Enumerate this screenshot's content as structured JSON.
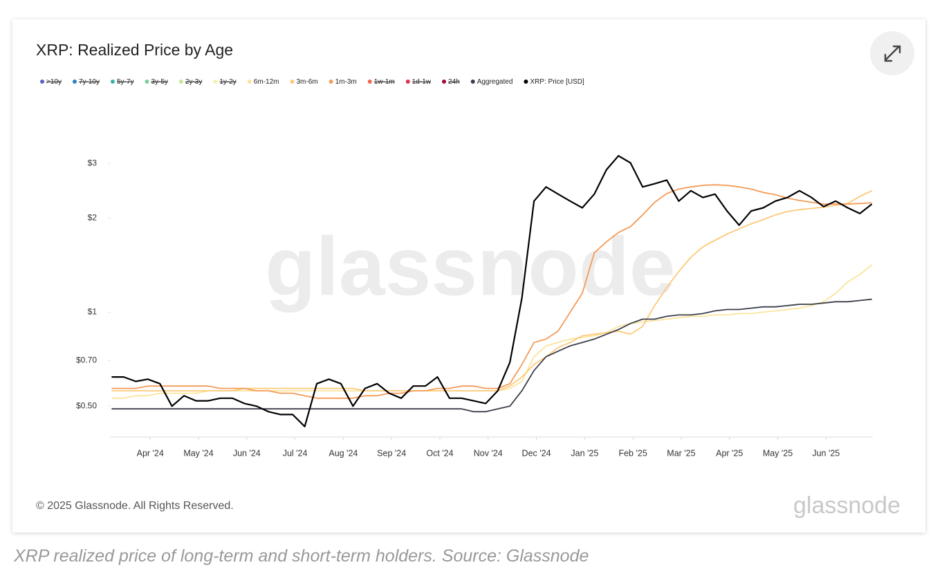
{
  "chart_data": {
    "type": "line",
    "title": "XRP: Realized Price by Age",
    "yscale": "log",
    "ylim": [
      0.4,
      5
    ],
    "yticks": [
      {
        "value": 0.5,
        "label": "$0.50"
      },
      {
        "value": 0.7,
        "label": "$0.70"
      },
      {
        "value": 1,
        "label": "$1"
      },
      {
        "value": 2,
        "label": "$2"
      },
      {
        "value": 3,
        "label": "$3"
      }
    ],
    "xlim": [
      -0.82,
      14.97
    ],
    "xticks": [
      {
        "value": 0,
        "label": "Apr '24"
      },
      {
        "value": 1,
        "label": "May '24"
      },
      {
        "value": 2,
        "label": "Jun '24"
      },
      {
        "value": 3,
        "label": "Jul '24"
      },
      {
        "value": 4,
        "label": "Aug '24"
      },
      {
        "value": 5,
        "label": "Sep '24"
      },
      {
        "value": 6,
        "label": "Oct '24"
      },
      {
        "value": 7,
        "label": "Nov '24"
      },
      {
        "value": 8,
        "label": "Dec '24"
      },
      {
        "value": 9,
        "label": "Jan '25"
      },
      {
        "value": 10,
        "label": "Feb '25"
      },
      {
        "value": 11,
        "label": "Mar '25"
      },
      {
        "value": 12,
        "label": "Apr '25"
      },
      {
        "value": 13,
        "label": "May '25"
      },
      {
        "value": 14,
        "label": "Jun '25"
      }
    ],
    "x": [
      -0.8,
      -0.55,
      -0.3,
      -0.05,
      0.2,
      0.45,
      0.7,
      0.95,
      1.2,
      1.45,
      1.7,
      1.95,
      2.2,
      2.45,
      2.7,
      2.95,
      3.2,
      3.45,
      3.7,
      3.95,
      4.2,
      4.45,
      4.7,
      4.95,
      5.2,
      5.45,
      5.7,
      5.95,
      6.2,
      6.45,
      6.7,
      6.95,
      7.2,
      7.45,
      7.7,
      7.95,
      8.2,
      8.45,
      8.7,
      8.95,
      9.2,
      9.45,
      9.7,
      9.95,
      10.2,
      10.45,
      10.7,
      10.95,
      11.2,
      11.45,
      11.7,
      11.95,
      12.2,
      12.45,
      12.7,
      12.95,
      13.2,
      13.45,
      13.7,
      13.95,
      14.2,
      14.45,
      14.7,
      14.95
    ],
    "series": [
      {
        "name": ">10y",
        "color": "#5b5fc7",
        "hidden": true
      },
      {
        "name": "7y-10y",
        "color": "#2f7fc1",
        "hidden": true
      },
      {
        "name": "5y-7y",
        "color": "#3bb3a8",
        "hidden": true
      },
      {
        "name": "3y-5y",
        "color": "#7ccf9a",
        "hidden": true
      },
      {
        "name": "2y-3y",
        "color": "#c5e59a",
        "hidden": true
      },
      {
        "name": "1y-2y",
        "color": "#f3f3a6",
        "hidden": true
      },
      {
        "name": "6m-12m",
        "color": "#fbe49a",
        "values": [
          0.53,
          0.53,
          0.54,
          0.54,
          0.55,
          0.55,
          0.55,
          0.55,
          0.56,
          0.56,
          0.56,
          0.56,
          0.56,
          0.56,
          0.56,
          0.56,
          0.56,
          0.56,
          0.56,
          0.56,
          0.56,
          0.56,
          0.56,
          0.56,
          0.56,
          0.56,
          0.56,
          0.56,
          0.56,
          0.56,
          0.56,
          0.56,
          0.56,
          0.57,
          0.6,
          0.72,
          0.78,
          0.8,
          0.82,
          0.83,
          0.84,
          0.86,
          0.9,
          0.92,
          0.93,
          0.94,
          0.95,
          0.96,
          0.97,
          0.97,
          0.98,
          0.98,
          0.99,
          0.99,
          1.0,
          1.01,
          1.02,
          1.03,
          1.05,
          1.08,
          1.15,
          1.25,
          1.32,
          1.42
        ]
      },
      {
        "name": "3m-6m",
        "color": "#fcc978",
        "values": [
          0.56,
          0.56,
          0.56,
          0.56,
          0.56,
          0.56,
          0.56,
          0.56,
          0.56,
          0.56,
          0.56,
          0.57,
          0.57,
          0.57,
          0.57,
          0.57,
          0.57,
          0.57,
          0.57,
          0.57,
          0.57,
          0.56,
          0.56,
          0.56,
          0.56,
          0.56,
          0.56,
          0.56,
          0.56,
          0.56,
          0.56,
          0.56,
          0.56,
          0.58,
          0.62,
          0.68,
          0.72,
          0.77,
          0.8,
          0.84,
          0.85,
          0.86,
          0.87,
          0.85,
          0.9,
          1.05,
          1.2,
          1.35,
          1.5,
          1.62,
          1.7,
          1.78,
          1.85,
          1.92,
          1.98,
          2.05,
          2.1,
          2.13,
          2.15,
          2.17,
          2.2,
          2.23,
          2.35,
          2.45
        ]
      },
      {
        "name": "1m-3m",
        "color": "#f59a55",
        "values": [
          0.57,
          0.57,
          0.57,
          0.58,
          0.58,
          0.58,
          0.58,
          0.58,
          0.58,
          0.57,
          0.57,
          0.57,
          0.56,
          0.56,
          0.55,
          0.55,
          0.54,
          0.53,
          0.53,
          0.53,
          0.53,
          0.54,
          0.54,
          0.55,
          0.55,
          0.56,
          0.56,
          0.57,
          0.57,
          0.58,
          0.58,
          0.57,
          0.57,
          0.59,
          0.68,
          0.8,
          0.82,
          0.87,
          1.0,
          1.15,
          1.55,
          1.68,
          1.8,
          1.88,
          2.05,
          2.25,
          2.4,
          2.48,
          2.52,
          2.55,
          2.56,
          2.55,
          2.52,
          2.48,
          2.42,
          2.38,
          2.32,
          2.28,
          2.25,
          2.22,
          2.22,
          2.22,
          2.23,
          2.24
        ]
      },
      {
        "name": "1w-1m",
        "color": "#f0694a",
        "hidden": true
      },
      {
        "name": "1d-1w",
        "color": "#d8344a",
        "hidden": true
      },
      {
        "name": "24h",
        "color": "#9b0d3c",
        "hidden": true
      },
      {
        "name": "Aggregated",
        "color": "#3b3d4a",
        "values": [
          0.49,
          0.49,
          0.49,
          0.49,
          0.49,
          0.49,
          0.49,
          0.49,
          0.49,
          0.49,
          0.49,
          0.49,
          0.49,
          0.49,
          0.49,
          0.49,
          0.49,
          0.49,
          0.49,
          0.49,
          0.49,
          0.49,
          0.49,
          0.49,
          0.49,
          0.49,
          0.49,
          0.49,
          0.49,
          0.49,
          0.48,
          0.48,
          0.49,
          0.5,
          0.56,
          0.65,
          0.72,
          0.75,
          0.78,
          0.8,
          0.82,
          0.85,
          0.88,
          0.92,
          0.95,
          0.95,
          0.97,
          0.98,
          0.98,
          0.99,
          1.01,
          1.02,
          1.02,
          1.03,
          1.04,
          1.04,
          1.05,
          1.06,
          1.06,
          1.07,
          1.08,
          1.08,
          1.09,
          1.1
        ]
      },
      {
        "name": "XRP: Price [USD]",
        "color": "#000000",
        "values": [
          0.62,
          0.62,
          0.6,
          0.61,
          0.59,
          0.5,
          0.54,
          0.52,
          0.52,
          0.53,
          0.53,
          0.51,
          0.5,
          0.48,
          0.47,
          0.47,
          0.43,
          0.59,
          0.61,
          0.59,
          0.5,
          0.57,
          0.59,
          0.55,
          0.53,
          0.58,
          0.58,
          0.62,
          0.53,
          0.53,
          0.52,
          0.51,
          0.56,
          0.69,
          1.11,
          2.27,
          2.52,
          2.39,
          2.27,
          2.16,
          2.39,
          2.86,
          3.17,
          3.01,
          2.52,
          2.58,
          2.65,
          2.27,
          2.45,
          2.33,
          2.39,
          2.11,
          1.9,
          2.11,
          2.16,
          2.27,
          2.33,
          2.45,
          2.33,
          2.18,
          2.27,
          2.16,
          2.07,
          2.22
        ]
      }
    ]
  },
  "watermark": "glassnode",
  "copyright": "© 2025 Glassnode. All Rights Reserved.",
  "brand": "glassnode",
  "caption": "XRP realized price of long-term and short-term holders. Source: Glassnode"
}
